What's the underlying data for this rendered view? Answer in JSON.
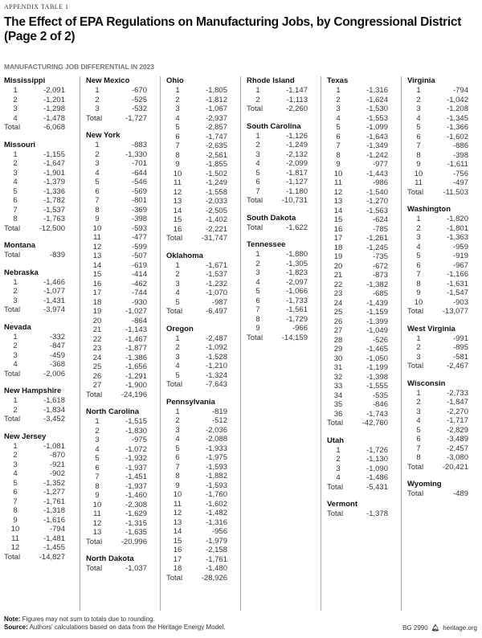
{
  "eyebrow": "APPENDIX TABLE 1",
  "title": "The Effect of EPA Regulations on Manufacturing Jobs, by Congressional District (Page 2 of 2)",
  "subtitle": "MANUFACTURING JOB DIFFERENTIAL IN 2023",
  "total_label": "Total",
  "columns": [
    [
      {
        "name": "Mississippi",
        "districts": [
          "-2,091",
          "-1,201",
          "-1,298",
          "-1,478"
        ],
        "total": "-6,068"
      },
      {
        "name": "Missouri",
        "districts": [
          "-1,155",
          "-1,647",
          "-1,901",
          "-1,379",
          "-1,336",
          "-1,782",
          "-1,537",
          "-1,763"
        ],
        "total": "-12,500"
      },
      {
        "name": "Montana",
        "districts": [],
        "total": "-839"
      },
      {
        "name": "Nebraska",
        "districts": [
          "-1,466",
          "-1,077",
          "-1,431"
        ],
        "total": "-3,974"
      },
      {
        "name": "Nevada",
        "districts": [
          "-332",
          "-847",
          "-459",
          "-368"
        ],
        "total": "-2,006"
      },
      {
        "name": "New Hampshire",
        "districts": [
          "-1,618",
          "-1,834"
        ],
        "total": "-3,452"
      },
      {
        "name": "New Jersey",
        "districts": [
          "-1,081",
          "-870",
          "-921",
          "-902",
          "-1,352",
          "-1,277",
          "-1,761",
          "-1,318",
          "-1,616",
          "-794",
          "-1,481",
          "-1,455"
        ],
        "total": "-14,827"
      }
    ],
    [
      {
        "name": "New Mexico",
        "districts": [
          "-670",
          "-525",
          "-532"
        ],
        "total": "-1,727"
      },
      {
        "name": "New York",
        "districts": [
          "-883",
          "-1,330",
          "-701",
          "-644",
          "-546",
          "-569",
          "-801",
          "-369",
          "-398",
          "-593",
          "-477",
          "-599",
          "-507",
          "-619",
          "-414",
          "-462",
          "-744",
          "-930",
          "-1,027",
          "-864",
          "-1,143",
          "-1,467",
          "-1,877",
          "-1,386",
          "-1,656",
          "-1,291",
          "-1,900"
        ],
        "total": "-24,196"
      },
      {
        "name": "North Carolina",
        "districts": [
          "-1,515",
          "-1,830",
          "-975",
          "-1,072",
          "-1,932",
          "-1,937",
          "-1,451",
          "-1,937",
          "-1,460",
          "-2,308",
          "-1,629",
          "-1,315",
          "-1,635"
        ],
        "total": "-20,996"
      },
      {
        "name": "North Dakota",
        "districts": [],
        "total": "-1,037"
      }
    ],
    [
      {
        "name": "Ohio",
        "districts": [
          "-1,805",
          "-1,812",
          "-1,067",
          "-2,937",
          "-2,857",
          "-1,747",
          "-2,635",
          "-2,561",
          "-1,855",
          "-1,502",
          "-1,249",
          "-1,558",
          "-2,033",
          "-2,505",
          "-1,402",
          "-2,221"
        ],
        "total": "-31,747"
      },
      {
        "name": "Oklahoma",
        "districts": [
          "-1,671",
          "-1,537",
          "-1,232",
          "-1,070",
          "-987"
        ],
        "total": "-6,497"
      },
      {
        "name": "Oregon",
        "districts": [
          "-2,487",
          "-1,092",
          "-1,528",
          "-1,210",
          "-1,324"
        ],
        "total": "-7,643"
      },
      {
        "name": "Pennsylvania",
        "districts": [
          "-819",
          "-512",
          "-2,036",
          "-2,088",
          "-1,933",
          "-1,975",
          "-1,593",
          "-1,882",
          "-1,593",
          "-1,760",
          "-1,602",
          "-1,482",
          "-1,316",
          "-956",
          "-1,979",
          "-2,158",
          "-1,761",
          "-1,480"
        ],
        "total": "-28,926"
      }
    ],
    [
      {
        "name": "Rhode Island",
        "districts": [
          "-1,147",
          "-1,113"
        ],
        "total": "-2,260"
      },
      {
        "name": "South Carolina",
        "districts": [
          "-1,126",
          "-1,249",
          "-2,132",
          "-2,099",
          "-1,817",
          "-1,127",
          "-1,180"
        ],
        "total": "-10,731"
      },
      {
        "name": "South Dakota",
        "districts": [],
        "total": "-1,622"
      },
      {
        "name": "Tennessee",
        "districts": [
          "-1,880",
          "-1,305",
          "-1,823",
          "-2,097",
          "-1,066",
          "-1,733",
          "-1,561",
          "-1,729",
          "-966"
        ],
        "total": "-14,159"
      }
    ],
    [
      {
        "name": "Texas",
        "districts": [
          "-1,316",
          "-1,624",
          "-1,530",
          "-1,553",
          "-1,099",
          "-1,643",
          "-1,349",
          "-1,242",
          "-977",
          "-1,443",
          "-986",
          "-1,540",
          "-1,270",
          "-1,563",
          "-624",
          "-785",
          "-1,261",
          "-1,245",
          "-735",
          "-672",
          "-873",
          "-1,382",
          "-685",
          "-1,439",
          "-1,159",
          "-1,399",
          "-1,049",
          "-526",
          "-1,465",
          "-1,050",
          "-1,199",
          "-1,398",
          "-1,555",
          "-535",
          "-846",
          "-1,743"
        ],
        "total": "-42,760"
      },
      {
        "name": "Utah",
        "districts": [
          "-1,726",
          "-1,130",
          "-1,090",
          "-1,486"
        ],
        "total": "-5,431"
      },
      {
        "name": "Vermont",
        "districts": [],
        "total": "-1,378"
      }
    ],
    [
      {
        "name": "Virginia",
        "districts": [
          "-794",
          "-1,042",
          "-1,208",
          "-1,345",
          "-1,366",
          "-1,602",
          "-886",
          "-398",
          "-1,611",
          "-756",
          "-497"
        ],
        "total": "-11,503"
      },
      {
        "name": "Washington",
        "districts": [
          "-1,820",
          "-1,801",
          "-1,363",
          "-959",
          "-919",
          "-967",
          "-1,166",
          "-1,631",
          "-1,547",
          "-903"
        ],
        "total": "-13,077"
      },
      {
        "name": "West Virginia",
        "districts": [
          "-991",
          "-895",
          "-581"
        ],
        "total": "-2,467"
      },
      {
        "name": "Wisconsin",
        "districts": [
          "-2,733",
          "-1,847",
          "-2,270",
          "-1,717",
          "-2,829",
          "-3,489",
          "-2,457",
          "-3,080"
        ],
        "total": "-20,421"
      },
      {
        "name": "Wyoming",
        "districts": [],
        "total": "-489"
      }
    ]
  ],
  "footer": {
    "note_label": "Note:",
    "note": " Figures may not sum to totals due to rounding.",
    "source_label": "Source:",
    "source": " Authors' calculations based on data from the Heritage Energy Model."
  },
  "brand": {
    "code": "BG 2990",
    "logo": "heritage-bell-logo",
    "site": "heritage.org"
  }
}
